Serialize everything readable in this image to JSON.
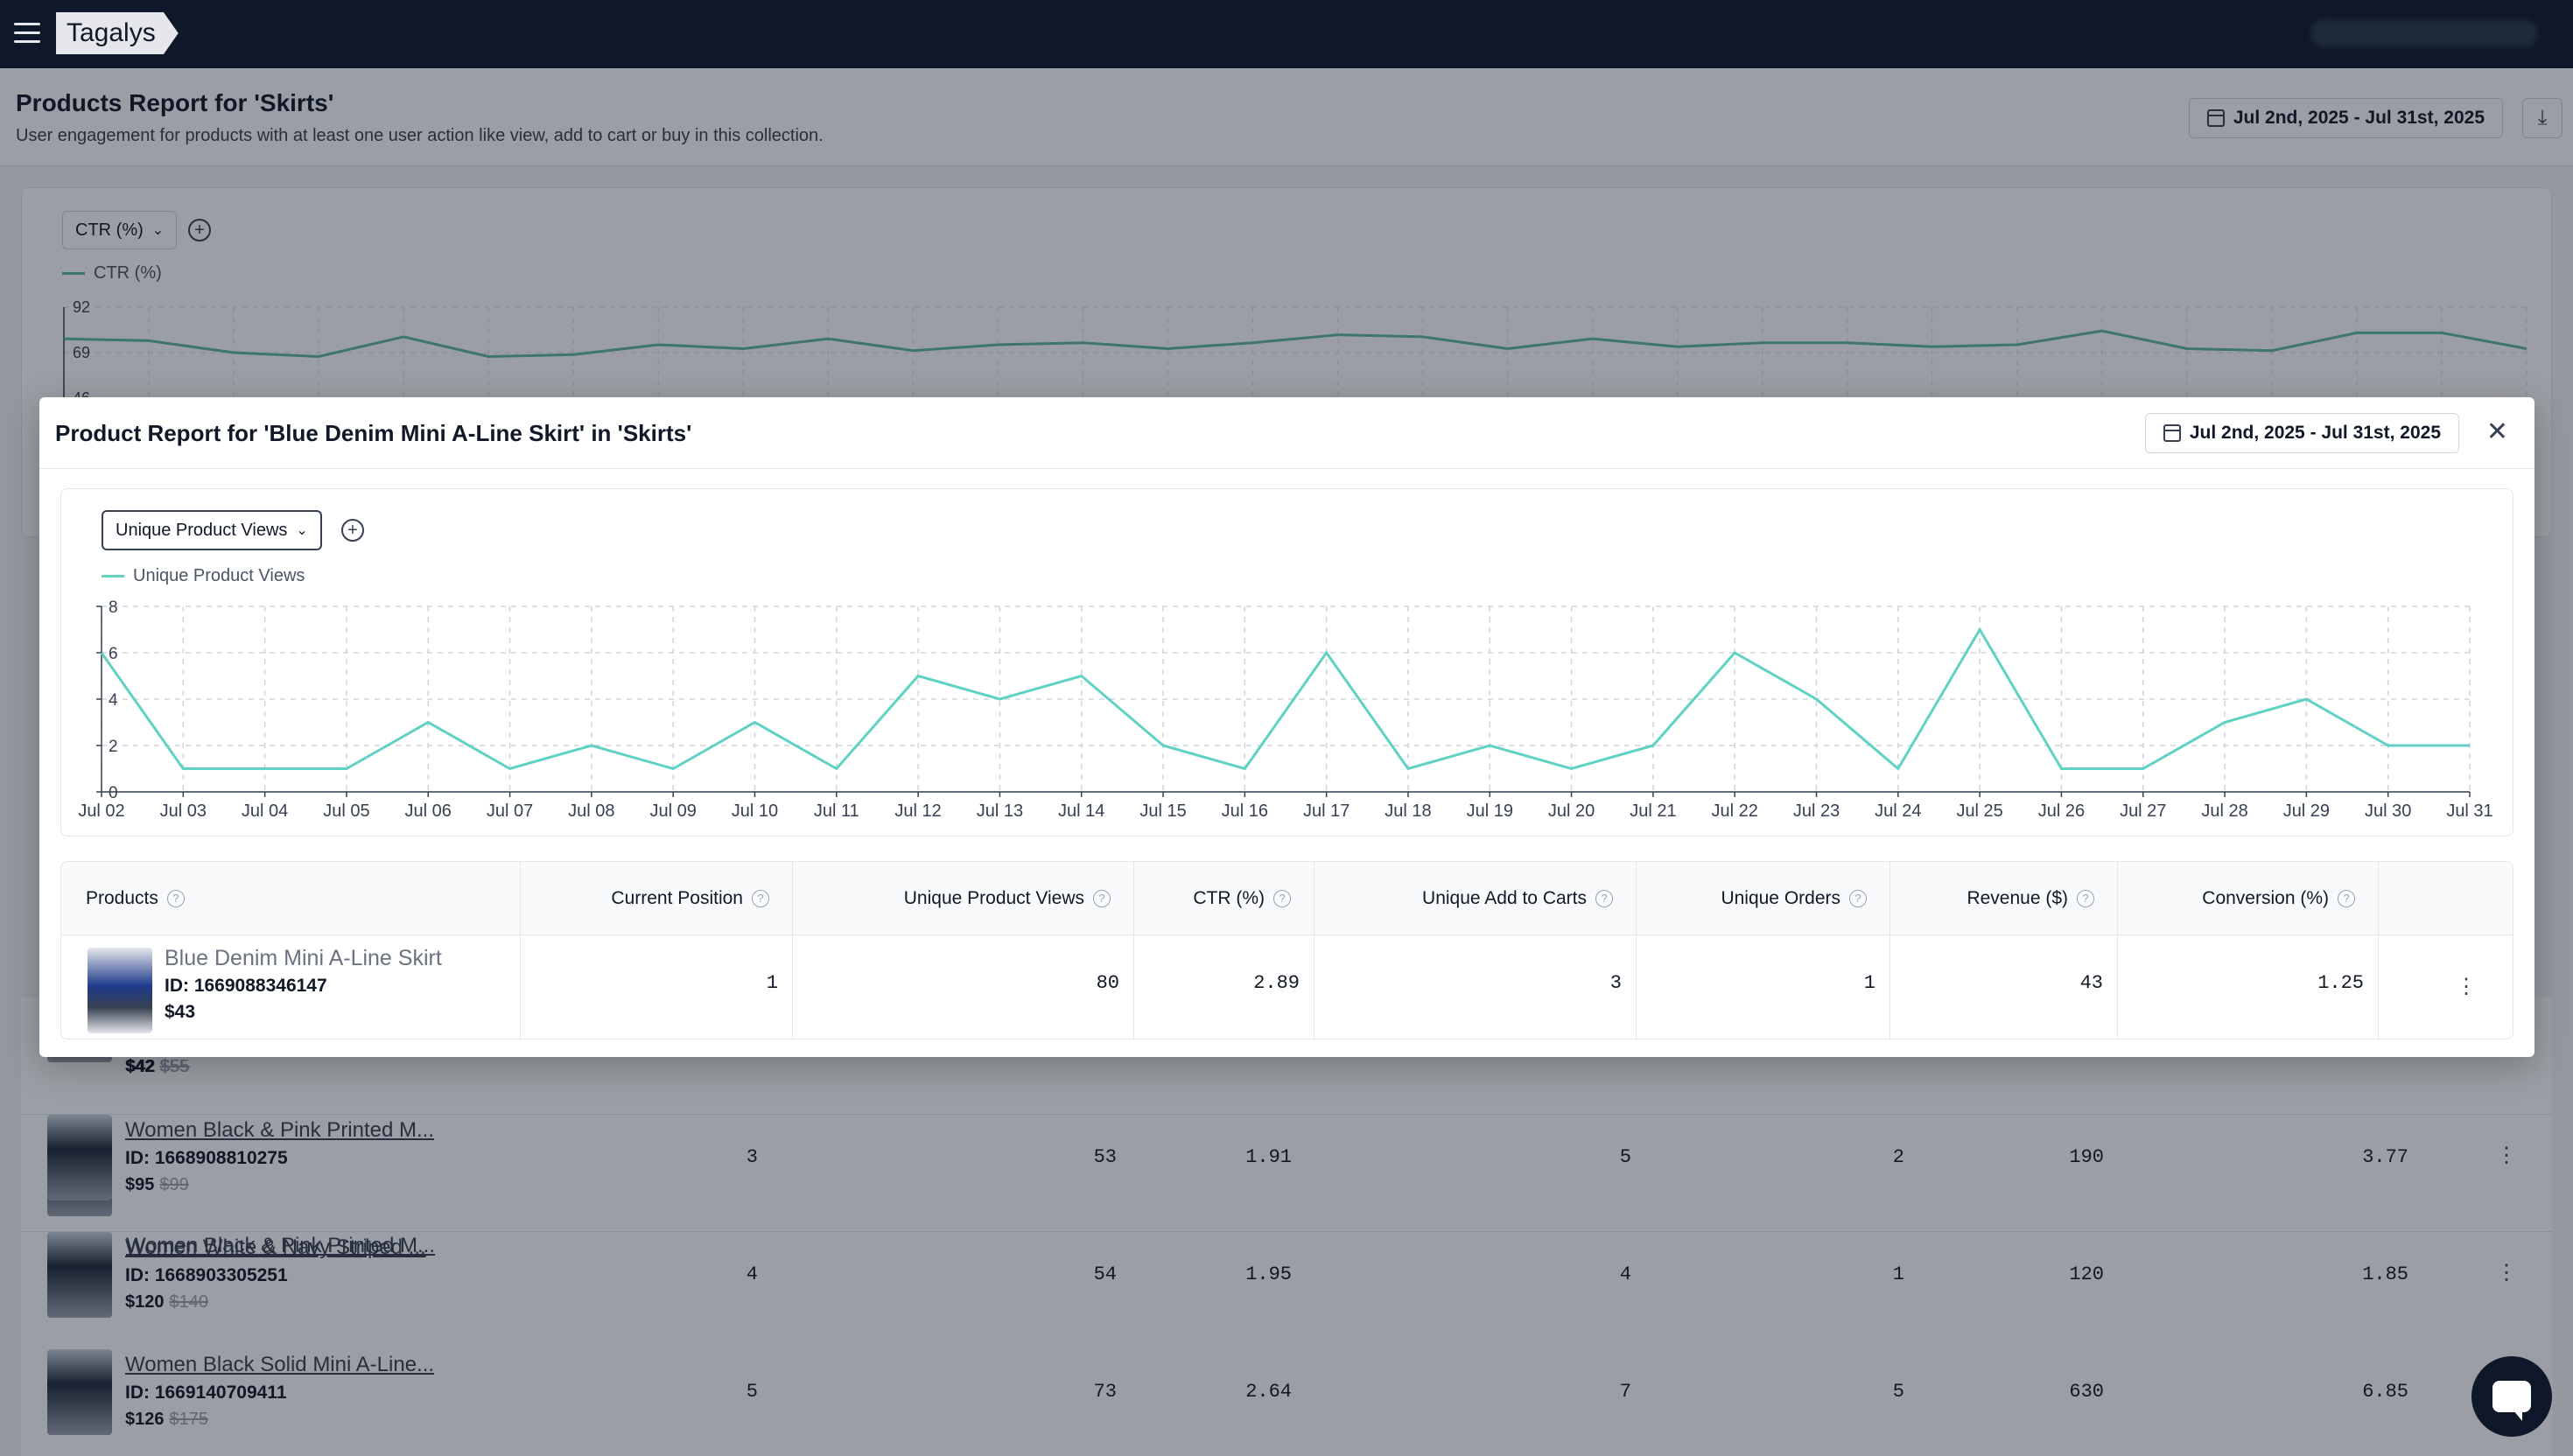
{
  "app": {
    "logo": "Tagalys"
  },
  "page": {
    "title": "Products Report for 'Skirts'",
    "subtitle": "User engagement for products with at least one user action like view, add to cart or buy in this collection.",
    "date_range": "Jul 2nd, 2025 - Jul 31st, 2025"
  },
  "bg_chart": {
    "metric": "CTR (%)",
    "legend": "CTR (%)",
    "ticks": [
      "92",
      "69",
      "46"
    ],
    "values": [
      76,
      75,
      69,
      67,
      77,
      67,
      68,
      73,
      71,
      76,
      70,
      73,
      74,
      71,
      74,
      78,
      77,
      71,
      76,
      72,
      74,
      74,
      72,
      73,
      80,
      71,
      70,
      79,
      79,
      71
    ],
    "color": "#5fb8a5"
  },
  "modal": {
    "title": "Product Report for 'Blue Denim Mini A-Line Skirt' in 'Skirts'",
    "date_range": "Jul 2nd, 2025 - Jul 31st, 2025",
    "metric": "Unique Product Views",
    "legend": "Unique Product Views",
    "columns": [
      "Products",
      "Current Position",
      "Unique Product Views",
      "CTR (%)",
      "Unique Add to Carts",
      "Unique Orders",
      "Revenue ($)",
      "Conversion (%)"
    ],
    "row": {
      "name": "Blue Denim Mini A-Line Skirt",
      "id": "ID: 1669088346147",
      "price": "$43",
      "position": "1",
      "views": "80",
      "ctr": "2.89",
      "add_to_carts": "3",
      "orders": "1",
      "revenue": "43",
      "conversion": "1.25"
    }
  },
  "chart_data": {
    "type": "line",
    "x": [
      "Jul 02",
      "Jul 03",
      "Jul 04",
      "Jul 05",
      "Jul 06",
      "Jul 07",
      "Jul 08",
      "Jul 09",
      "Jul 10",
      "Jul 11",
      "Jul 12",
      "Jul 13",
      "Jul 14",
      "Jul 15",
      "Jul 16",
      "Jul 17",
      "Jul 18",
      "Jul 19",
      "Jul 20",
      "Jul 21",
      "Jul 22",
      "Jul 23",
      "Jul 24",
      "Jul 25",
      "Jul 26",
      "Jul 27",
      "Jul 28",
      "Jul 29",
      "Jul 30",
      "Jul 31"
    ],
    "series": [
      {
        "name": "Unique Product Views",
        "values": [
          6,
          1,
          1,
          1,
          3,
          1,
          2,
          1,
          3,
          1,
          5,
          4,
          5,
          2,
          1,
          6,
          1,
          2,
          1,
          2,
          6,
          4,
          1,
          7,
          1,
          1,
          3,
          4,
          2,
          2
        ],
        "color": "#5fd2c3"
      }
    ],
    "ylim": [
      0,
      8
    ],
    "yticks": [
      "0",
      "2",
      "4",
      "6",
      "8"
    ],
    "grid": true,
    "legend": "top-left"
  },
  "bg_rows": [
    {
      "price": "$42",
      "old": "$55"
    },
    {
      "name": "Women Black & Pink Printed M...",
      "id": "ID: 1668908810275",
      "price": "$95",
      "old": "$99",
      "position": "3",
      "views": "53",
      "ctr": "1.91",
      "atc": "5",
      "orders": "2",
      "revenue": "190",
      "conv": "3.77"
    },
    {
      "name": "Women White & Navy Striped ...",
      "id": "ID: 1668903305251",
      "price": "$120",
      "old": "$140",
      "position": "4",
      "views": "54",
      "ctr": "1.95",
      "atc": "4",
      "orders": "1",
      "revenue": "120",
      "conv": "1.85"
    },
    {
      "name": "Women Black Solid Mini A-Line...",
      "id": "ID: 1669140709411",
      "price": "$126",
      "old": "$175",
      "position": "5",
      "views": "73",
      "ctr": "2.64",
      "atc": "7",
      "orders": "5",
      "revenue": "630",
      "conv": "6.85"
    }
  ]
}
